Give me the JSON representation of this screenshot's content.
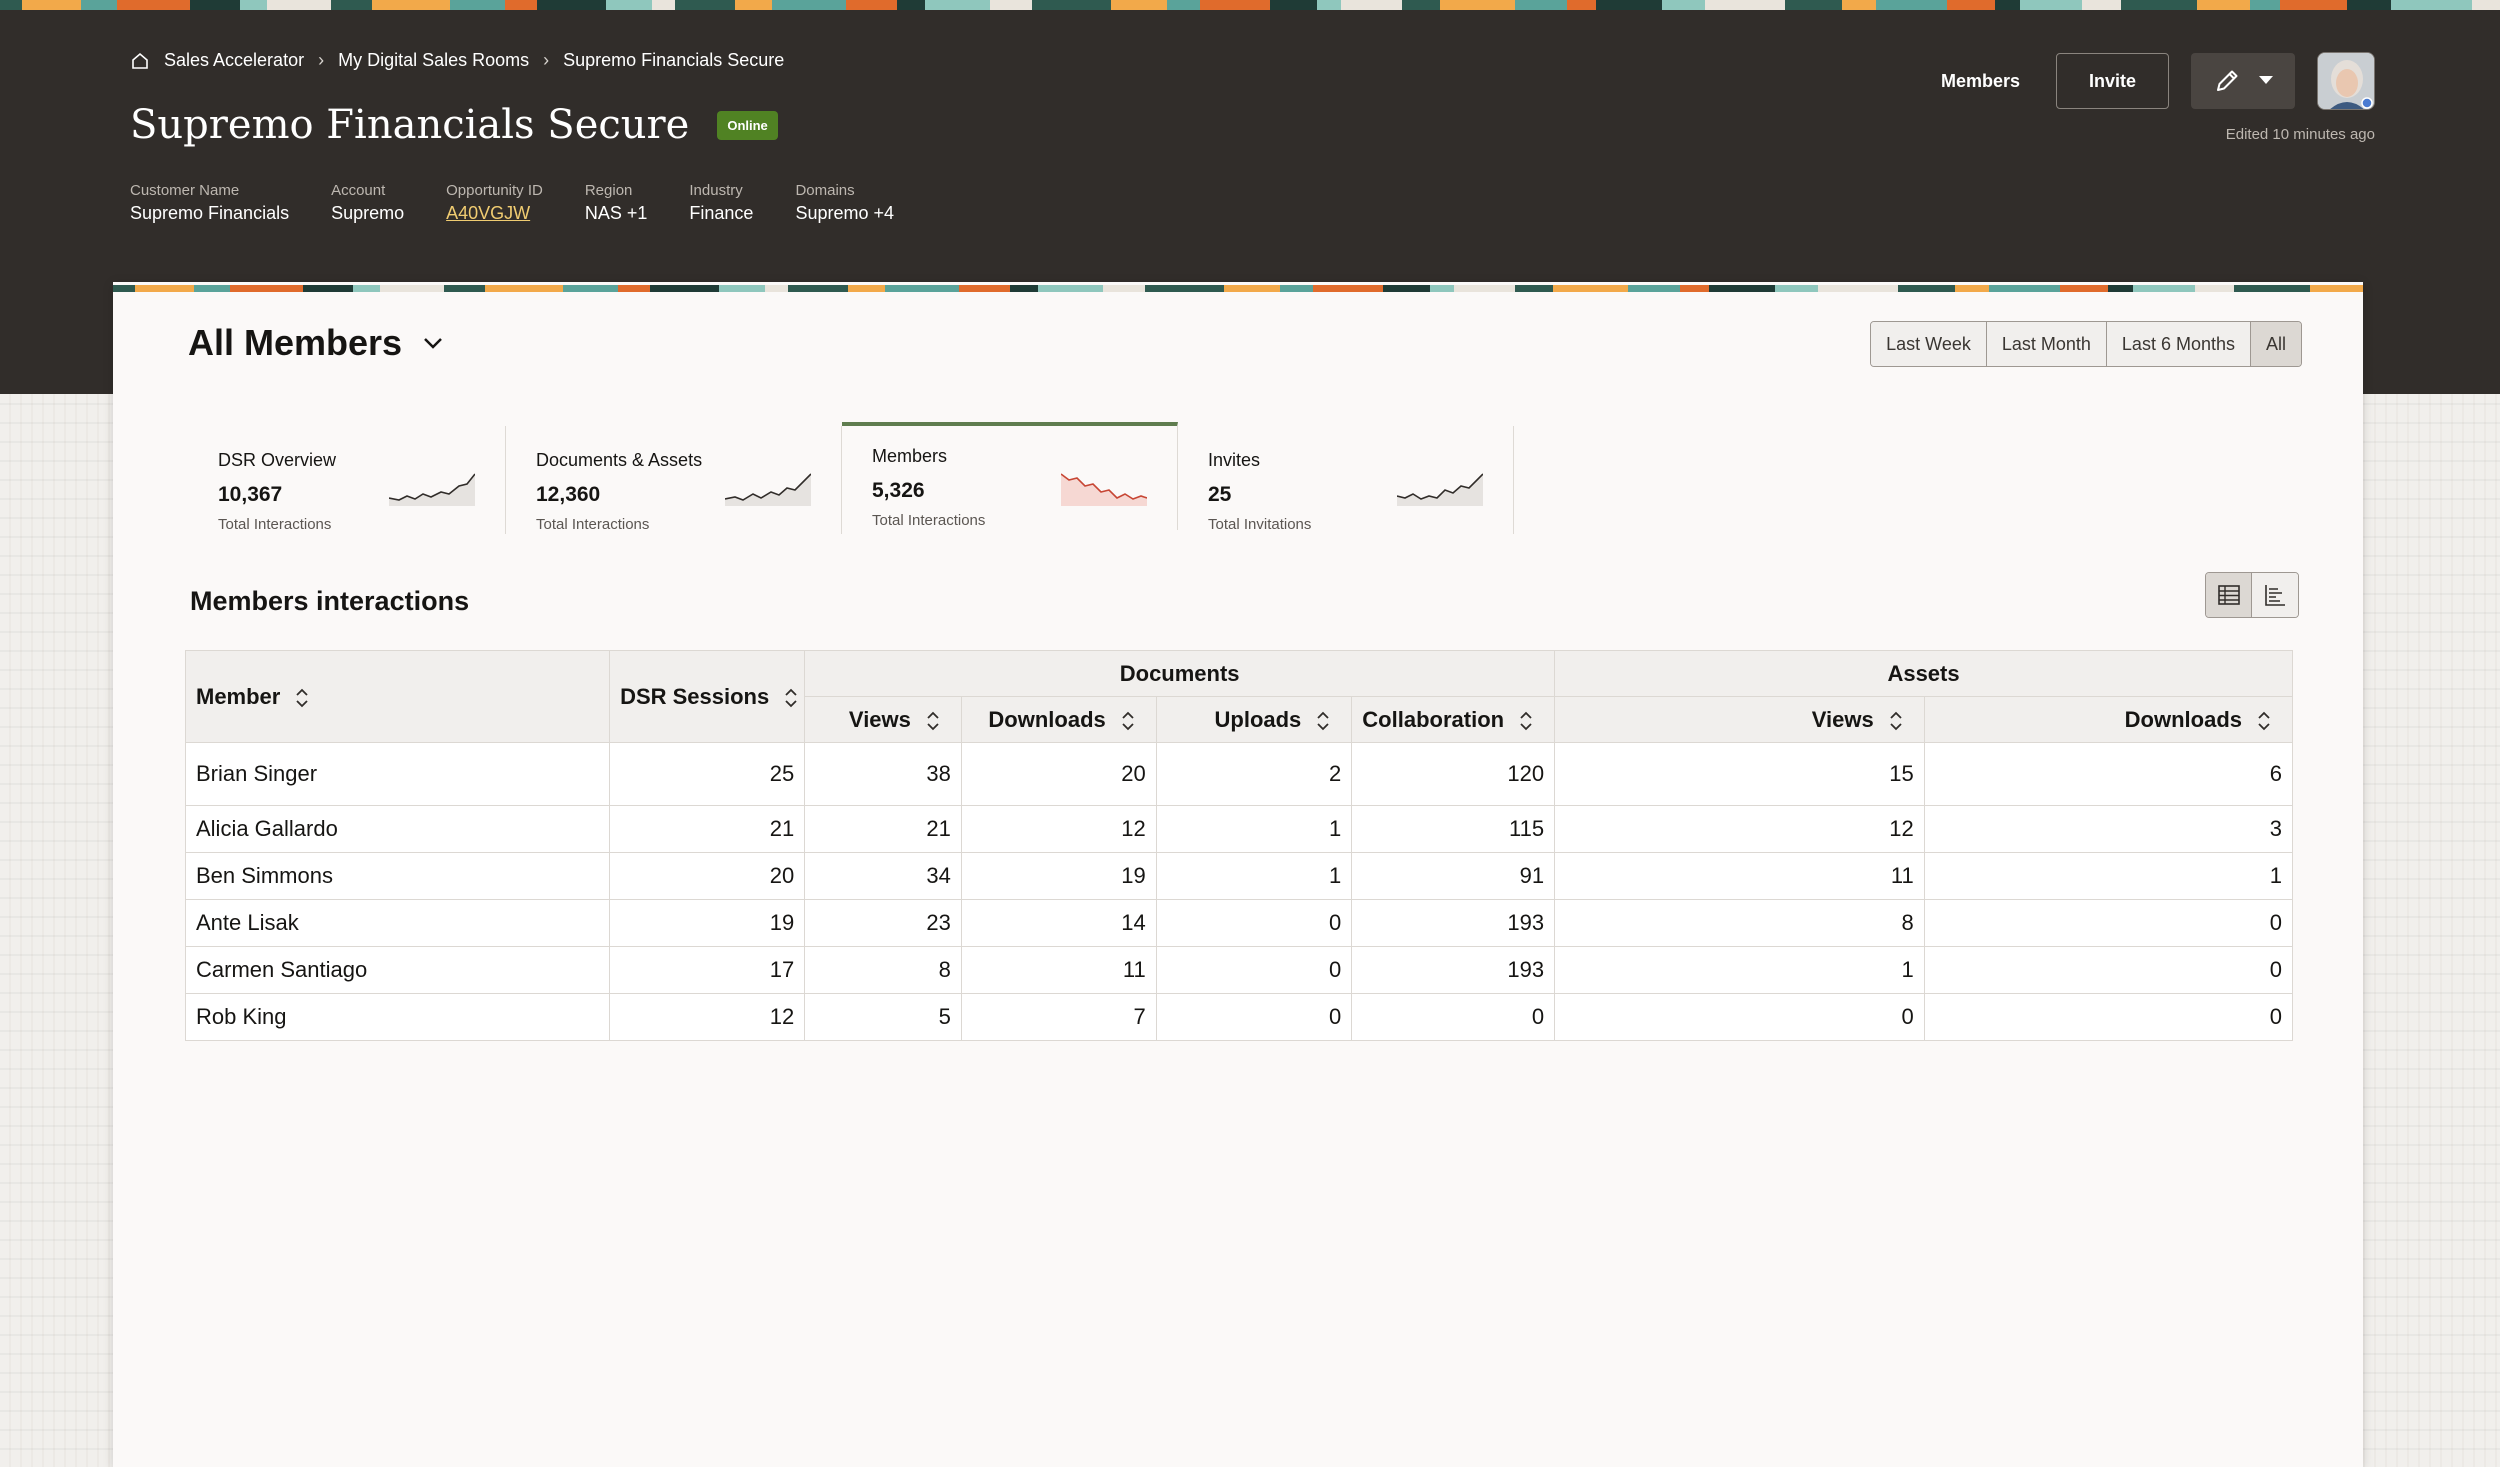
{
  "breadcrumb": {
    "items": [
      "Sales Accelerator",
      "My Digital Sales Rooms",
      "Supremo Financials Secure"
    ]
  },
  "page": {
    "title": "Supremo Financials Secure",
    "status": "Online",
    "edited": "Edited 10 minutes ago"
  },
  "meta": [
    {
      "label": "Customer Name",
      "value": "Supremo Financials"
    },
    {
      "label": "Account",
      "value": "Supremo"
    },
    {
      "label": "Opportunity ID",
      "value": "A40VGJW"
    },
    {
      "label": "Region",
      "value": "NAS +1"
    },
    {
      "label": "Industry",
      "value": "Finance"
    },
    {
      "label": "Domains",
      "value": "Supremo +4"
    }
  ],
  "actions": {
    "members": "Members",
    "invite": "Invite"
  },
  "card": {
    "title": "All Members",
    "filters": [
      "Last Week",
      "Last Month",
      "Last 6 Months",
      "All"
    ],
    "active_filter": "All"
  },
  "metrics": [
    {
      "label": "DSR Overview",
      "value": "10,367",
      "sub": "Total Interactions",
      "trend": "up",
      "color": "#4a4541"
    },
    {
      "label": "Documents & Assets",
      "value": "12,360",
      "sub": "Total Interactions",
      "trend": "up",
      "color": "#4a4541"
    },
    {
      "label": "Members",
      "value": "5,326",
      "sub": "Total Interactions",
      "trend": "down",
      "color": "#c74634"
    },
    {
      "label": "Invites",
      "value": "25",
      "sub": "Total Invitations",
      "trend": "up",
      "color": "#4a4541"
    }
  ],
  "section": {
    "title": "Members interactions"
  },
  "table": {
    "groups": {
      "documents": "Documents",
      "assets": "Assets"
    },
    "columns": {
      "member": "Member",
      "dsr_sessions": "DSR Sessions",
      "doc_views": "Views",
      "doc_downloads": "Downloads",
      "doc_uploads": "Uploads",
      "doc_collaboration": "Collaboration",
      "asset_views": "Views",
      "asset_downloads": "Downloads"
    },
    "rows": [
      [
        "Brian Singer",
        "25",
        "38",
        "20",
        "2",
        "120",
        "15",
        "6"
      ],
      [
        "Alicia Gallardo",
        "21",
        "21",
        "12",
        "1",
        "115",
        "12",
        "3"
      ],
      [
        "Ben Simmons",
        "20",
        "34",
        "19",
        "1",
        "91",
        "11",
        "1"
      ],
      [
        "Ante Lisak",
        "19",
        "23",
        "14",
        "0",
        "193",
        "8",
        "0"
      ],
      [
        "Carmen Santiago",
        "17",
        "8",
        "11",
        "0",
        "193",
        "1",
        "0"
      ],
      [
        "Rob King",
        "12",
        "5",
        "7",
        "0",
        "0",
        "0",
        "0"
      ]
    ]
  },
  "colors": {
    "header_bg": "#312d2a",
    "status_green": "#508223",
    "link_yellow": "#f0cc71",
    "active_tab": "#5f7d4f",
    "down_trend": "#c74634"
  }
}
